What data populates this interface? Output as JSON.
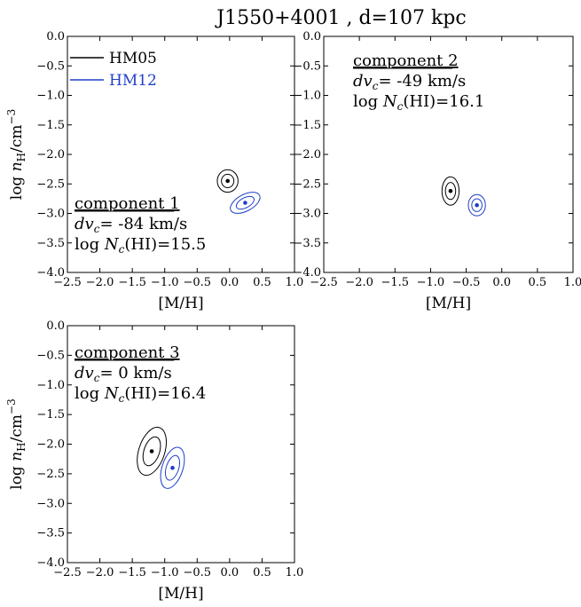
{
  "figure": {
    "title": "J1550+4001 , d=107 kpc",
    "colors": {
      "HM05": "#000000",
      "HM12": "#1f3fc8"
    }
  },
  "legend": [
    {
      "label": "HM05",
      "color": "#000000"
    },
    {
      "label": "HM12",
      "color": "#1f3fc8"
    }
  ],
  "chart_data": [
    {
      "type": "scatter",
      "panel": "component-1",
      "xlabel": "[M/H]",
      "ylabel": "log n_H/cm^-3",
      "xlim": [
        -2.5,
        1.0
      ],
      "ylim": [
        -4.0,
        0.0
      ],
      "xticks": [
        "-2.5",
        "-2.0",
        "-1.5",
        "-1.0",
        "-0.5",
        "0.0",
        "0.5",
        "1.0"
      ],
      "yticks": [
        "0.0",
        "-0.5",
        "-1.0",
        "-1.5",
        "-2.0",
        "-2.5",
        "-3.0",
        "-3.5",
        "-4.0"
      ],
      "annotation": {
        "name": "component 1",
        "dv": "-84 km/s",
        "logN": "15.5"
      },
      "series": [
        {
          "name": "HM05",
          "color": "#000000",
          "x": -0.03,
          "y": -2.45,
          "sx": 0.16,
          "sy": 0.19,
          "tilt": 0
        },
        {
          "name": "HM12",
          "color": "#1f3fc8",
          "x": 0.24,
          "y": -2.82,
          "sx": 0.25,
          "sy": 0.14,
          "tilt": -28
        }
      ]
    },
    {
      "type": "scatter",
      "panel": "component-2",
      "xlabel": "[M/H]",
      "ylabel": "",
      "xlim": [
        -2.5,
        1.0
      ],
      "ylim": [
        -4.0,
        0.0
      ],
      "xticks": [
        "-2.5",
        "-2.0",
        "-1.5",
        "-1.0",
        "-0.5",
        "0.0",
        "0.5",
        "1.0"
      ],
      "yticks": [
        "0.0",
        "-0.5",
        "-1.0",
        "-1.5",
        "-2.0",
        "-2.5",
        "-3.0",
        "-3.5",
        "-4.0"
      ],
      "annotation": {
        "name": "component 2",
        "dv": "-49 km/s",
        "logN": "16.1"
      },
      "series": [
        {
          "name": "HM05",
          "color": "#000000",
          "x": -0.72,
          "y": -2.62,
          "sx": 0.12,
          "sy": 0.24,
          "tilt": 0
        },
        {
          "name": "HM12",
          "color": "#1f3fc8",
          "x": -0.35,
          "y": -2.86,
          "sx": 0.12,
          "sy": 0.18,
          "tilt": 0
        }
      ]
    },
    {
      "type": "scatter",
      "panel": "component-3",
      "xlabel": "[M/H]",
      "ylabel": "log n_H/cm^-3",
      "xlim": [
        -2.5,
        1.0
      ],
      "ylim": [
        -4.0,
        0.0
      ],
      "xticks": [
        "-2.5",
        "-2.0",
        "-1.5",
        "-1.0",
        "-0.5",
        "0.0",
        "0.5",
        "1.0"
      ],
      "yticks": [
        "0.0",
        "-0.5",
        "-1.0",
        "-1.5",
        "-2.0",
        "-2.5",
        "-3.0",
        "-3.5",
        "-4.0"
      ],
      "annotation": {
        "name": "component 3",
        "dv": "0 km/s",
        "logN": "16.4"
      },
      "series": [
        {
          "name": "HM05",
          "color": "#000000",
          "x": -1.2,
          "y": -2.12,
          "sx": 0.2,
          "sy": 0.42,
          "tilt": 18
        },
        {
          "name": "HM12",
          "color": "#1f3fc8",
          "x": -0.88,
          "y": -2.4,
          "sx": 0.16,
          "sy": 0.36,
          "tilt": 18
        }
      ]
    }
  ]
}
